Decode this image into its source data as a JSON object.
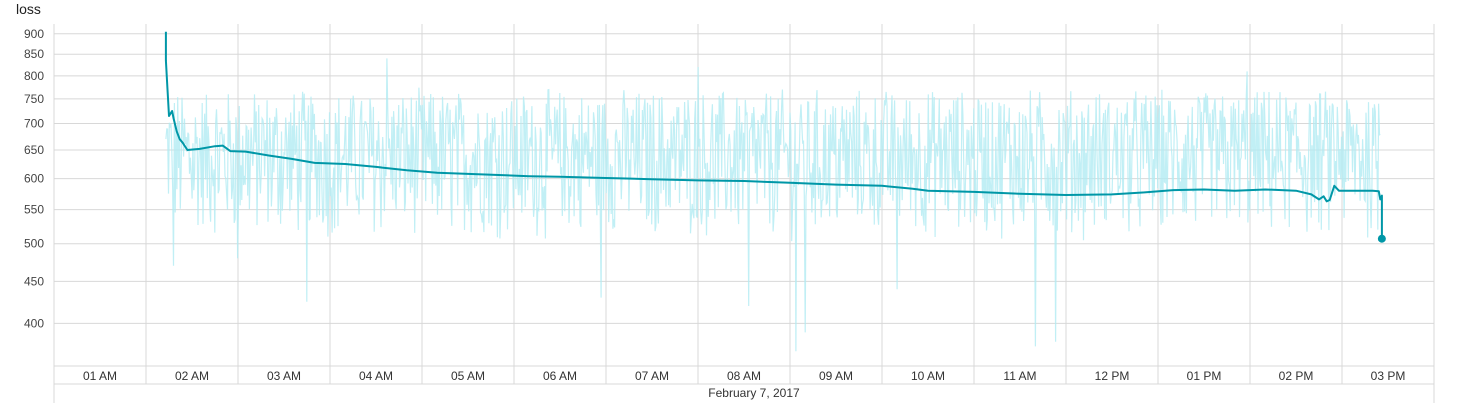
{
  "chart_data": {
    "type": "line",
    "title": "loss",
    "xlabel": "",
    "ylabel": "",
    "y_scale": "log",
    "ylim": [
      355,
      925
    ],
    "xlim": [
      "2017-02-07 00:30",
      "2017-02-07 15:30"
    ],
    "grid": true,
    "y_ticks": [
      400,
      450,
      500,
      550,
      600,
      650,
      700,
      750,
      800,
      850,
      900
    ],
    "y_tick_labels": [
      "400",
      "450",
      "500",
      "550",
      "600",
      "650",
      "700",
      "750",
      "800",
      "850",
      "900"
    ],
    "x_ticks": [
      "2017-02-07 01:00",
      "2017-02-07 02:00",
      "2017-02-07 03:00",
      "2017-02-07 04:00",
      "2017-02-07 05:00",
      "2017-02-07 06:00",
      "2017-02-07 07:00",
      "2017-02-07 08:00",
      "2017-02-07 09:00",
      "2017-02-07 10:00",
      "2017-02-07 11:00",
      "2017-02-07 12:00",
      "2017-02-07 13:00",
      "2017-02-07 14:00",
      "2017-02-07 15:00"
    ],
    "x_tick_labels": [
      "01 AM",
      "02 AM",
      "03 AM",
      "04 AM",
      "05 AM",
      "06 AM",
      "07 AM",
      "08 AM",
      "09 AM",
      "10 AM",
      "11 AM",
      "12 PM",
      "01 PM",
      "02 PM",
      "03 PM"
    ],
    "date_label": "February 7, 2017",
    "colors": {
      "smoothed": "#0097a7",
      "raw": "#b2ebf2",
      "grid": "#d8d8d8"
    },
    "series": [
      {
        "label": "smoothed",
        "points": [
          [
            "2017-02-07 01:43",
            905
          ],
          [
            "2017-02-07 01:43",
            835
          ],
          [
            "2017-02-07 01:44",
            770
          ],
          [
            "2017-02-07 01:45",
            715
          ],
          [
            "2017-02-07 01:47",
            725
          ],
          [
            "2017-02-07 01:48",
            710
          ],
          [
            "2017-02-07 01:50",
            685
          ],
          [
            "2017-02-07 01:52",
            670
          ],
          [
            "2017-02-07 01:54",
            663
          ],
          [
            "2017-02-07 01:57",
            650
          ],
          [
            "2017-02-07 02:05",
            652
          ],
          [
            "2017-02-07 02:15",
            657
          ],
          [
            "2017-02-07 02:20",
            658
          ],
          [
            "2017-02-07 02:25",
            648
          ],
          [
            "2017-02-07 02:35",
            647
          ],
          [
            "2017-02-07 02:50",
            640
          ],
          [
            "2017-02-07 03:05",
            634
          ],
          [
            "2017-02-07 03:20",
            627
          ],
          [
            "2017-02-07 03:40",
            625
          ],
          [
            "2017-02-07 04:00",
            620
          ],
          [
            "2017-02-07 04:20",
            614
          ],
          [
            "2017-02-07 04:40",
            610
          ],
          [
            "2017-02-07 05:00",
            608
          ],
          [
            "2017-02-07 05:20",
            606
          ],
          [
            "2017-02-07 05:40",
            604
          ],
          [
            "2017-02-07 06:00",
            603
          ],
          [
            "2017-02-07 06:30",
            601
          ],
          [
            "2017-02-07 07:00",
            599
          ],
          [
            "2017-02-07 07:30",
            597
          ],
          [
            "2017-02-07 08:00",
            596
          ],
          [
            "2017-02-07 08:30",
            593
          ],
          [
            "2017-02-07 09:00",
            590
          ],
          [
            "2017-02-07 09:30",
            588
          ],
          [
            "2017-02-07 09:50",
            583
          ],
          [
            "2017-02-07 10:00",
            580
          ],
          [
            "2017-02-07 10:30",
            578
          ],
          [
            "2017-02-07 11:00",
            575
          ],
          [
            "2017-02-07 11:30",
            573
          ],
          [
            "2017-02-07 12:00",
            574
          ],
          [
            "2017-02-07 12:20",
            577
          ],
          [
            "2017-02-07 12:40",
            581
          ],
          [
            "2017-02-07 13:00",
            582
          ],
          [
            "2017-02-07 13:20",
            580
          ],
          [
            "2017-02-07 13:40",
            582
          ],
          [
            "2017-02-07 14:00",
            580
          ],
          [
            "2017-02-07 14:10",
            574
          ],
          [
            "2017-02-07 14:15",
            566
          ],
          [
            "2017-02-07 14:18",
            571
          ],
          [
            "2017-02-07 14:20",
            563
          ],
          [
            "2017-02-07 14:22",
            565
          ],
          [
            "2017-02-07 14:25",
            588
          ],
          [
            "2017-02-07 14:28",
            580
          ],
          [
            "2017-02-07 14:50",
            580
          ],
          [
            "2017-02-07 14:54",
            579
          ],
          [
            "2017-02-07 14:55",
            566
          ],
          [
            "2017-02-07 14:56",
            572
          ],
          [
            "2017-02-07 14:56",
            507
          ]
        ]
      },
      {
        "label": "raw",
        "range_min": [
          "2017-02-07 01:43",
          "2017-02-07 14:55"
        ],
        "outliers": [
          [
            "2017-02-07 01:48",
            470
          ],
          [
            "2017-02-07 02:30",
            480
          ],
          [
            "2017-02-07 03:15",
            425
          ],
          [
            "2017-02-07 04:07",
            840
          ],
          [
            "2017-02-07 06:27",
            430
          ],
          [
            "2017-02-07 07:30",
            820
          ],
          [
            "2017-02-07 08:03",
            420
          ],
          [
            "2017-02-07 08:34",
            370
          ],
          [
            "2017-02-07 08:40",
            390
          ],
          [
            "2017-02-07 09:40",
            440
          ],
          [
            "2017-02-07 11:10",
            375
          ],
          [
            "2017-02-07 11:23",
            380
          ],
          [
            "2017-02-07 13:28",
            810
          ],
          [
            "2017-02-07 14:54",
            740
          ]
        ],
        "typical_range": [
          490,
          790
        ]
      }
    ],
    "end_marker": [
      "2017-02-07 14:56",
      507
    ]
  }
}
